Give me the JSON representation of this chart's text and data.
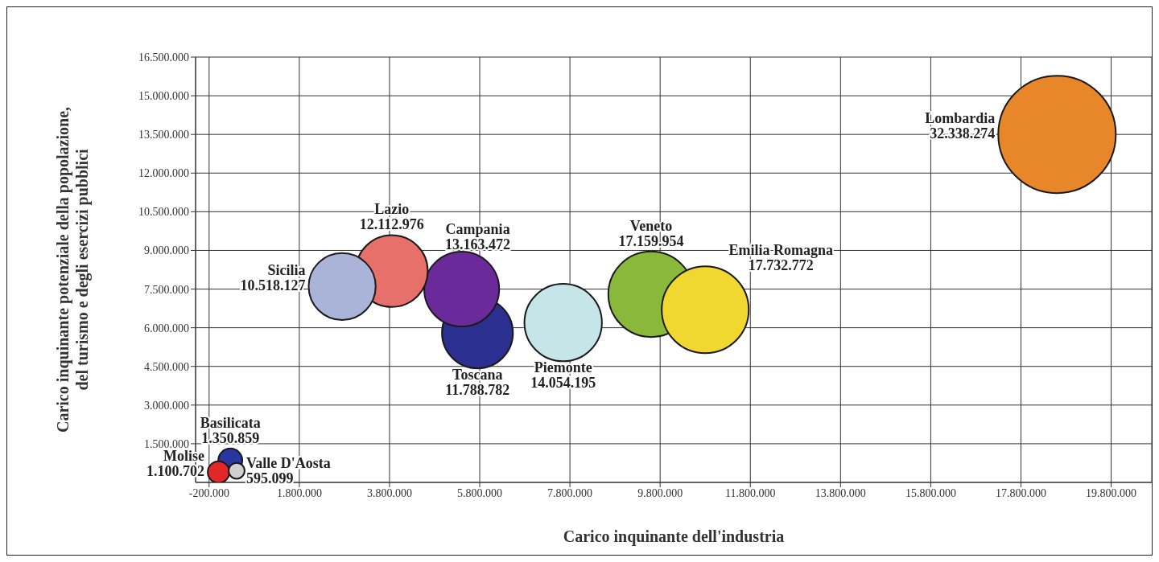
{
  "chart_data": {
    "type": "bubble",
    "xlabel": "Carico inquinante dell'industria",
    "ylabel": "Carico inquinante potenziale della popolazione, del turismo e degli esercizi pubblici",
    "series": [
      {
        "name": "Lombardia",
        "color": "#e8872a",
        "x": [
          18600000
        ],
        "values": [
          13500000
        ],
        "sizes": [
          32338274
        ],
        "value_labels": [
          "32.338.274"
        ]
      },
      {
        "name": "Veneto",
        "color": "#8ab83a",
        "x": [
          9600000
        ],
        "values": [
          7300000
        ],
        "sizes": [
          17159954
        ],
        "value_labels": [
          "17.159.954"
        ]
      },
      {
        "name": "Emilia Romagna",
        "color": "#f0d830",
        "x": [
          10800000
        ],
        "values": [
          6700000
        ],
        "sizes": [
          17732772
        ],
        "value_labels": [
          "17.732.772"
        ]
      },
      {
        "name": "Piemonte",
        "color": "#c5e5e8",
        "x": [
          7650000
        ],
        "values": [
          6200000
        ],
        "sizes": [
          14054195
        ],
        "value_labels": [
          "14.054.195"
        ]
      },
      {
        "name": "Toscana",
        "color": "#2a2f90",
        "x": [
          5750000
        ],
        "values": [
          5800000
        ],
        "sizes": [
          11788782
        ],
        "value_labels": [
          "11.788.782"
        ]
      },
      {
        "name": "Campania",
        "color": "#6a2a9a",
        "x": [
          5400000
        ],
        "values": [
          7500000
        ],
        "sizes": [
          13163472
        ],
        "value_labels": [
          "13.163.472"
        ]
      },
      {
        "name": "Lazio",
        "color": "#e8706a",
        "x": [
          3850000
        ],
        "values": [
          8200000
        ],
        "sizes": [
          12112976
        ],
        "value_labels": [
          "12.112.976"
        ]
      },
      {
        "name": "Sicilia",
        "color": "#aab4d8",
        "x": [
          2750000
        ],
        "values": [
          7600000
        ],
        "sizes": [
          10518127
        ],
        "value_labels": [
          "10.518.127"
        ]
      },
      {
        "name": "Basilicata",
        "color": "#2a36a0",
        "x": [
          270000
        ],
        "values": [
          850000
        ],
        "sizes": [
          1350859
        ],
        "value_labels": [
          "1.350.859"
        ]
      },
      {
        "name": "Molise",
        "color": "#e02828",
        "x": [
          10000
        ],
        "values": [
          400000
        ],
        "sizes": [
          1100702
        ],
        "value_labels": [
          "1.100.702"
        ]
      },
      {
        "name": "Valle D'Aosta",
        "color": "#d0d0d0",
        "x": [
          410000
        ],
        "values": [
          450000
        ],
        "sizes": [
          595099
        ],
        "value_labels": [
          "595.099"
        ]
      }
    ],
    "xlim": [
      -500000,
      20700000
    ],
    "xticks": [
      {
        "value": -200000,
        "label": "-200.000"
      },
      {
        "value": 1800000,
        "label": "1.800.000"
      },
      {
        "value": 3800000,
        "label": "3.800.000"
      },
      {
        "value": 5800000,
        "label": "5.800.000"
      },
      {
        "value": 7800000,
        "label": "7.800.000"
      },
      {
        "value": 9800000,
        "label": "9.800.000"
      },
      {
        "value": 11800000,
        "label": "11.800.000"
      },
      {
        "value": 13800000,
        "label": "13.800.000"
      },
      {
        "value": 15800000,
        "label": "15.800.000"
      },
      {
        "value": 17800000,
        "label": "17.800.000"
      },
      {
        "value": 19800000,
        "label": "19.800.000"
      }
    ],
    "ylim": [
      0,
      16500000
    ],
    "yticks": [
      {
        "value": 1500000,
        "label": "1.500.000"
      },
      {
        "value": 3000000,
        "label": "3.000.000"
      },
      {
        "value": 4500000,
        "label": "4.500.000"
      },
      {
        "value": 6000000,
        "label": "6.000.000"
      },
      {
        "value": 7500000,
        "label": "7.500.000"
      },
      {
        "value": 9000000,
        "label": "9.000.000"
      },
      {
        "value": 10500000,
        "label": "10.500.000"
      },
      {
        "value": 12000000,
        "label": "12.000.000"
      },
      {
        "value": 13500000,
        "label": "13.500.000"
      },
      {
        "value": 15000000,
        "label": "15.000.000"
      },
      {
        "value": 16500000,
        "label": "16.500.000"
      }
    ],
    "grid": true,
    "legend": false
  }
}
